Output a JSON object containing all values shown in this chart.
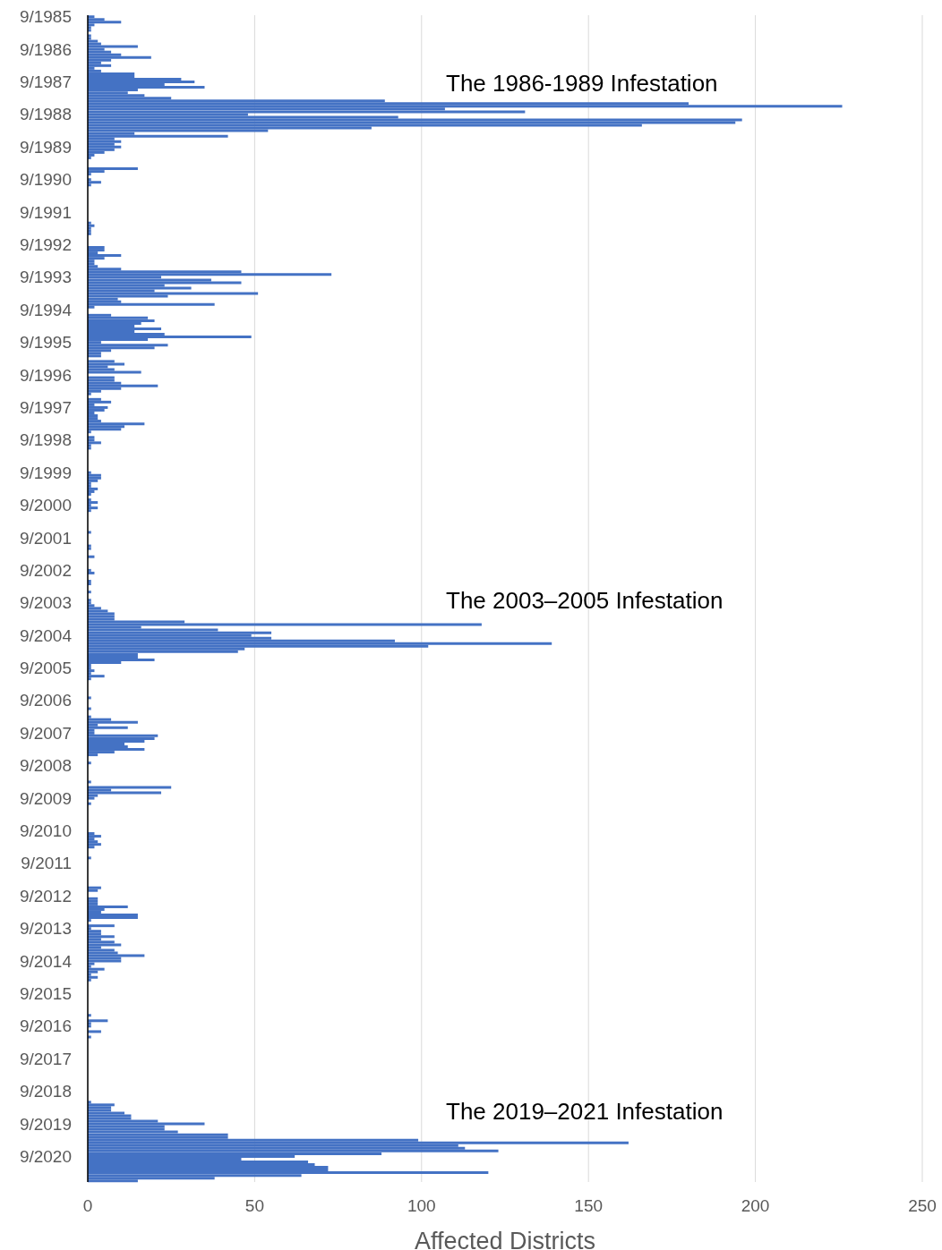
{
  "chart_data": {
    "type": "bar",
    "orientation": "horizontal",
    "xlabel": "Affected Districts",
    "color": "#4472c4",
    "xlim": [
      0,
      250
    ],
    "xticks": [
      0,
      50,
      100,
      150,
      200,
      250
    ],
    "grid": "x",
    "legend": false,
    "annotations": [
      "The 1986-1989 Infestation",
      "The 2003–2005 Infestation",
      "The 2019–2021 Infestation"
    ],
    "categories": [
      "9/1985",
      null,
      null,
      null,
      null,
      null,
      null,
      null,
      null,
      null,
      null,
      null,
      "9/1986",
      null,
      null,
      null,
      null,
      null,
      null,
      null,
      null,
      null,
      null,
      null,
      "9/1987",
      null,
      null,
      null,
      null,
      null,
      null,
      null,
      null,
      null,
      null,
      null,
      "9/1988",
      null,
      null,
      null,
      null,
      null,
      null,
      null,
      null,
      null,
      null,
      null,
      "9/1989",
      null,
      null,
      null,
      null,
      null,
      null,
      null,
      null,
      null,
      null,
      null,
      "9/1990",
      null,
      null,
      null,
      null,
      null,
      null,
      null,
      null,
      null,
      null,
      null,
      "9/1991",
      null,
      null,
      null,
      null,
      null,
      null,
      null,
      null,
      null,
      null,
      null,
      "9/1992",
      null,
      null,
      null,
      null,
      null,
      null,
      null,
      null,
      null,
      null,
      null,
      "9/1993",
      null,
      null,
      null,
      null,
      null,
      null,
      null,
      null,
      null,
      null,
      null,
      "9/1994",
      null,
      null,
      null,
      null,
      null,
      null,
      null,
      null,
      null,
      null,
      null,
      "9/1995",
      null,
      null,
      null,
      null,
      null,
      null,
      null,
      null,
      null,
      null,
      null,
      "9/1996",
      null,
      null,
      null,
      null,
      null,
      null,
      null,
      null,
      null,
      null,
      null,
      "9/1997",
      null,
      null,
      null,
      null,
      null,
      null,
      null,
      null,
      null,
      null,
      null,
      "9/1998",
      null,
      null,
      null,
      null,
      null,
      null,
      null,
      null,
      null,
      null,
      null,
      "9/1999",
      null,
      null,
      null,
      null,
      null,
      null,
      null,
      null,
      null,
      null,
      null,
      "9/2000",
      null,
      null,
      null,
      null,
      null,
      null,
      null,
      null,
      null,
      null,
      null,
      "9/2001",
      null,
      null,
      null,
      null,
      null,
      null,
      null,
      null,
      null,
      null,
      null,
      "9/2002",
      null,
      null,
      null,
      null,
      null,
      null,
      null,
      null,
      null,
      null,
      null,
      "9/2003",
      null,
      null,
      null,
      null,
      null,
      null,
      null,
      null,
      null,
      null,
      null,
      "9/2004",
      null,
      null,
      null,
      null,
      null,
      null,
      null,
      null,
      null,
      null,
      null,
      "9/2005",
      null,
      null,
      null,
      null,
      null,
      null,
      null,
      null,
      null,
      null,
      null,
      "9/2006",
      null,
      null,
      null,
      null,
      null,
      null,
      null,
      null,
      null,
      null,
      null,
      "9/2007",
      null,
      null,
      null,
      null,
      null,
      null,
      null,
      null,
      null,
      null,
      null,
      "9/2008",
      null,
      null,
      null,
      null,
      null,
      null,
      null,
      null,
      null,
      null,
      null,
      "9/2009",
      null,
      null,
      null,
      null,
      null,
      null,
      null,
      null,
      null,
      null,
      null,
      "9/2010",
      null,
      null,
      null,
      null,
      null,
      null,
      null,
      null,
      null,
      null,
      null,
      "9/2011",
      null,
      null,
      null,
      null,
      null,
      null,
      null,
      null,
      null,
      null,
      null,
      "9/2012",
      null,
      null,
      null,
      null,
      null,
      null,
      null,
      null,
      null,
      null,
      null,
      "9/2013",
      null,
      null,
      null,
      null,
      null,
      null,
      null,
      null,
      null,
      null,
      null,
      "9/2014",
      null,
      null,
      null,
      null,
      null,
      null,
      null,
      null,
      null,
      null,
      null,
      "9/2015",
      null,
      null,
      null,
      null,
      null,
      null,
      null,
      null,
      null,
      null,
      null,
      "9/2016",
      null,
      null,
      null,
      null,
      null,
      null,
      null,
      null,
      null,
      null,
      null,
      "9/2017",
      null,
      null,
      null,
      null,
      null,
      null,
      null,
      null,
      null,
      null,
      null,
      "9/2018",
      null,
      null,
      null,
      null,
      null,
      null,
      null,
      null,
      null,
      null,
      null,
      "9/2019",
      null,
      null,
      null,
      null,
      null,
      null,
      null,
      null,
      null,
      null,
      null,
      "9/2020",
      null,
      null,
      null,
      null,
      null,
      null,
      null,
      null,
      null
    ],
    "values": [
      2,
      5,
      10,
      2,
      1,
      1,
      0,
      1,
      1,
      3,
      4,
      15,
      5,
      7,
      10,
      19,
      7,
      4,
      7,
      2,
      4,
      14,
      14,
      28,
      32,
      23,
      35,
      15,
      12,
      17,
      25,
      89,
      180,
      226,
      107,
      131,
      48,
      93,
      196,
      194,
      166,
      85,
      54,
      14,
      42,
      8,
      10,
      8,
      10,
      8,
      5,
      2,
      1,
      0,
      0,
      0,
      15,
      5,
      1,
      0,
      1,
      4,
      1,
      0,
      0,
      0,
      0,
      0,
      0,
      0,
      0,
      0,
      0,
      0,
      0,
      0,
      1,
      2,
      1,
      1,
      1,
      0,
      0,
      0,
      0,
      5,
      5,
      3,
      10,
      5,
      2,
      2,
      3,
      10,
      46,
      73,
      22,
      37,
      46,
      23,
      31,
      20,
      51,
      24,
      9,
      10,
      38,
      2,
      0,
      0,
      7,
      18,
      20,
      16,
      14,
      22,
      14,
      23,
      49,
      18,
      4,
      24,
      20,
      7,
      4,
      4,
      0,
      8,
      11,
      6,
      8,
      16,
      0,
      8,
      8,
      10,
      21,
      10,
      4,
      1,
      0,
      4,
      7,
      2,
      6,
      5,
      2,
      3,
      3,
      4,
      17,
      11,
      10,
      1,
      0,
      2,
      2,
      4,
      1,
      1,
      0,
      0,
      0,
      0,
      0,
      0,
      0,
      0,
      1,
      4,
      4,
      3,
      1,
      1,
      3,
      2,
      1,
      0,
      1,
      3,
      1,
      3,
      1,
      0,
      0,
      0,
      0,
      0,
      0,
      0,
      1,
      0,
      0,
      0,
      0,
      1,
      1,
      0,
      0,
      2,
      0,
      0,
      0,
      0,
      1,
      2,
      0,
      0,
      1,
      1,
      0,
      0,
      1,
      0,
      0,
      1,
      1,
      2,
      4,
      6,
      8,
      8,
      8,
      29,
      118,
      16,
      39,
      55,
      49,
      55,
      92,
      139,
      102,
      47,
      45,
      15,
      15,
      20,
      10,
      1,
      1,
      2,
      1,
      5,
      1,
      0,
      0,
      0,
      0,
      0,
      0,
      1,
      0,
      0,
      0,
      1,
      0,
      0,
      1,
      7,
      15,
      3,
      12,
      2,
      2,
      21,
      20,
      17,
      11,
      12,
      17,
      8,
      3,
      0,
      0,
      1,
      0,
      0,
      0,
      0,
      0,
      0,
      1,
      0,
      25,
      7,
      22,
      3,
      2,
      0,
      1,
      0,
      0,
      0,
      0,
      0,
      0,
      0,
      0,
      0,
      0,
      2,
      4,
      2,
      3,
      4,
      2,
      0,
      0,
      0,
      1,
      0,
      0,
      0,
      0,
      0,
      0,
      0,
      0,
      0,
      0,
      4,
      3,
      0,
      0,
      3,
      3,
      3,
      12,
      5,
      4,
      15,
      15,
      1,
      0,
      8,
      1,
      4,
      4,
      8,
      4,
      8,
      10,
      4,
      8,
      9,
      17,
      10,
      10,
      2,
      1,
      5,
      3,
      1,
      3,
      1,
      0,
      0,
      0,
      0,
      0,
      0,
      0,
      0,
      0,
      0,
      0,
      0,
      1,
      0,
      6,
      1,
      1,
      0,
      4,
      0,
      1,
      0,
      0,
      0,
      0,
      0,
      0,
      0,
      0,
      0,
      0,
      0,
      0,
      0,
      0,
      0,
      0,
      0,
      0,
      0,
      0,
      0,
      0,
      0,
      1,
      8,
      7,
      7,
      11,
      13,
      13,
      21,
      35,
      23,
      23,
      27,
      42,
      42,
      99,
      162,
      111,
      113,
      123,
      88,
      62,
      46,
      66,
      68,
      72,
      72,
      120,
      64,
      38,
      15
    ]
  }
}
